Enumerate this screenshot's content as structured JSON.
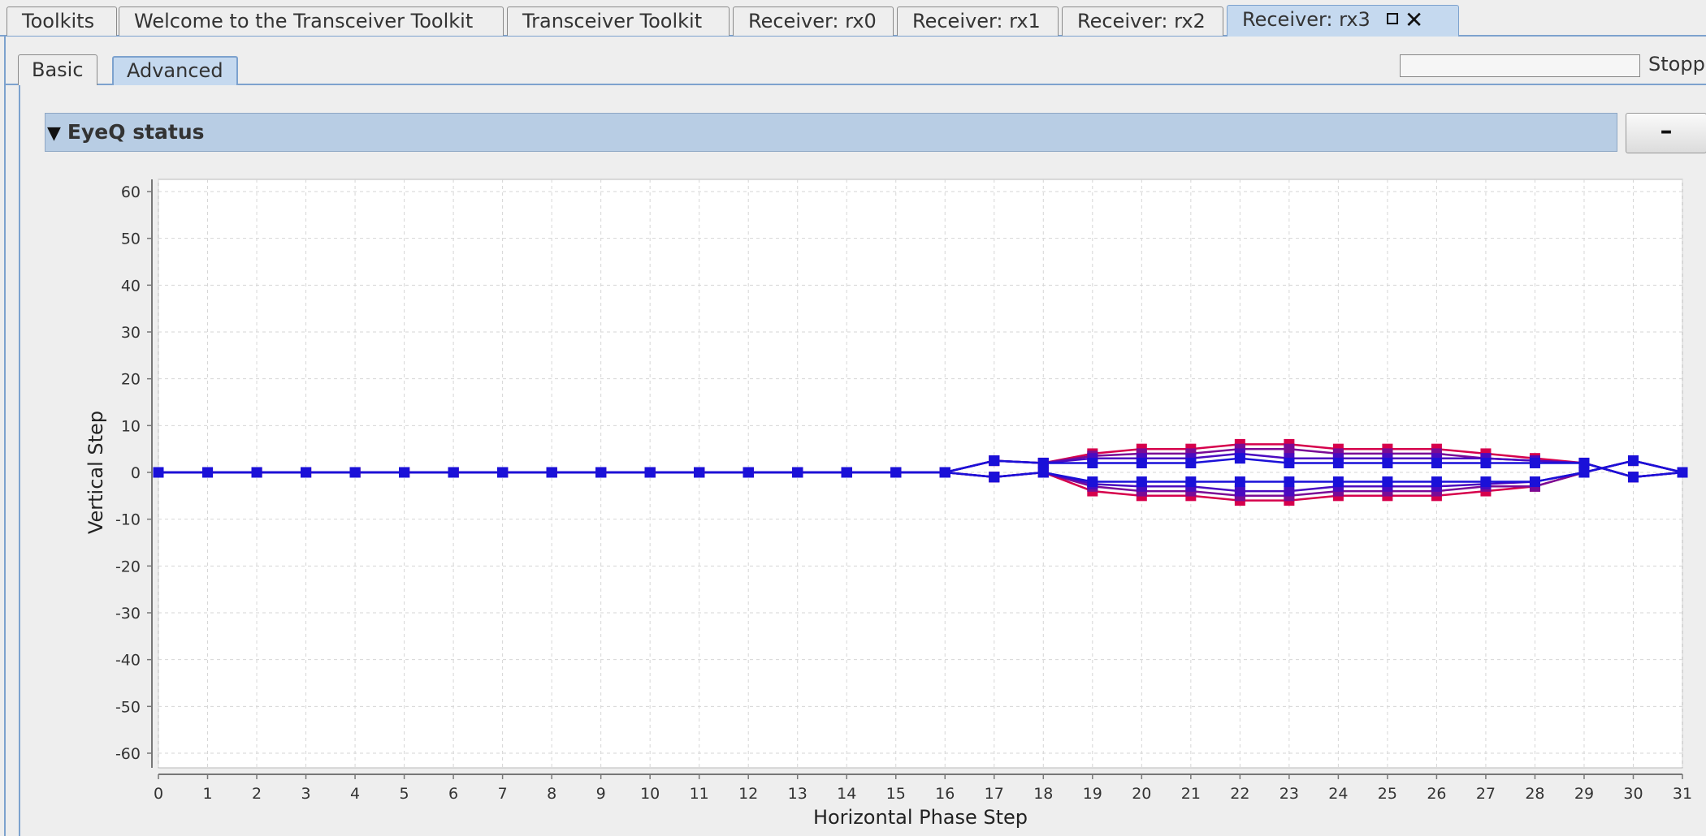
{
  "tabs": [
    {
      "label": "Toolkits",
      "active": false
    },
    {
      "label": "Welcome to the Transceiver Toolkit",
      "active": false
    },
    {
      "label": "Transceiver Toolkit",
      "active": false
    },
    {
      "label": "Receiver: rx0",
      "active": false
    },
    {
      "label": "Receiver: rx1",
      "active": false
    },
    {
      "label": "Receiver: rx2",
      "active": false
    },
    {
      "label": "Receiver: rx3",
      "active": true
    }
  ],
  "subtabs": [
    {
      "label": "Basic",
      "active": false
    },
    {
      "label": "Advanced",
      "active": true
    }
  ],
  "status_text": "Stopped",
  "section": {
    "title": "EyeQ status",
    "collapse_label": "–"
  },
  "colors": {
    "accent": "#7da2ce",
    "header_bg": "#b8cde4",
    "series_red": "#d6004c",
    "series_purple": "#7a0a96",
    "series_blue": "#1a10d8"
  },
  "icons": [
    "maximize-icon",
    "close-icon",
    "triangle-down-icon"
  ],
  "chart_data": {
    "type": "line",
    "xlabel": "Horizontal Phase Step",
    "ylabel": "Vertical Step",
    "xlim": [
      0,
      31
    ],
    "ylim": [
      -60,
      60
    ],
    "xticks": [
      0,
      1,
      2,
      3,
      4,
      5,
      6,
      7,
      8,
      9,
      10,
      11,
      12,
      13,
      14,
      15,
      16,
      17,
      18,
      19,
      20,
      21,
      22,
      23,
      24,
      25,
      26,
      27,
      28,
      29,
      30,
      31
    ],
    "yticks": [
      60,
      50,
      40,
      30,
      20,
      10,
      0,
      -10,
      -20,
      -30,
      -40,
      -50,
      -60
    ],
    "grid": true,
    "x": [
      0,
      1,
      2,
      3,
      4,
      5,
      6,
      7,
      8,
      9,
      10,
      11,
      12,
      13,
      14,
      15,
      16,
      17,
      18,
      19,
      20,
      21,
      22,
      23,
      24,
      25,
      26,
      27,
      28,
      29,
      30,
      31
    ],
    "series": [
      {
        "color": "#d6004c",
        "values": [
          0,
          0,
          0,
          0,
          0,
          0,
          0,
          0,
          0,
          0,
          0,
          0,
          0,
          0,
          0,
          0,
          0,
          2.5,
          2,
          4,
          5,
          5,
          6,
          6,
          5,
          5,
          5,
          4,
          3,
          2,
          -1,
          0
        ]
      },
      {
        "color": "#d6004c",
        "values": [
          0,
          0,
          0,
          0,
          0,
          0,
          0,
          0,
          0,
          0,
          0,
          0,
          0,
          0,
          0,
          0,
          0,
          -1,
          0,
          -4,
          -5,
          -5,
          -6,
          -6,
          -5,
          -5,
          -5,
          -4,
          -3,
          0,
          2.5,
          0
        ]
      },
      {
        "color": "#7a0a96",
        "values": [
          0,
          0,
          0,
          0,
          0,
          0,
          0,
          0,
          0,
          0,
          0,
          0,
          0,
          0,
          0,
          0,
          0,
          2.5,
          2,
          3.5,
          4,
          4,
          5,
          5,
          4,
          4,
          4,
          3,
          2.5,
          2,
          -1,
          0
        ]
      },
      {
        "color": "#7a0a96",
        "values": [
          0,
          0,
          0,
          0,
          0,
          0,
          0,
          0,
          0,
          0,
          0,
          0,
          0,
          0,
          0,
          0,
          0,
          -1,
          0,
          -3,
          -4,
          -4,
          -5,
          -5,
          -4,
          -4,
          -4,
          -3,
          -3,
          0,
          2.5,
          0
        ]
      },
      {
        "color": "#4a0ac0",
        "values": [
          0,
          0,
          0,
          0,
          0,
          0,
          0,
          0,
          0,
          0,
          0,
          0,
          0,
          0,
          0,
          0,
          0,
          2.5,
          2,
          3,
          3,
          3,
          4,
          3,
          3,
          3,
          3,
          3,
          2.5,
          2,
          -1,
          0
        ]
      },
      {
        "color": "#4a0ac0",
        "values": [
          0,
          0,
          0,
          0,
          0,
          0,
          0,
          0,
          0,
          0,
          0,
          0,
          0,
          0,
          0,
          0,
          0,
          -1,
          0,
          -2.5,
          -3,
          -3,
          -4,
          -4,
          -3,
          -3,
          -3,
          -2.5,
          -2,
          0,
          2.5,
          0
        ]
      },
      {
        "color": "#1a10d8",
        "values": [
          0,
          0,
          0,
          0,
          0,
          0,
          0,
          0,
          0,
          0,
          0,
          0,
          0,
          0,
          0,
          0,
          0,
          2.5,
          2,
          2,
          2,
          2,
          3,
          2,
          2,
          2,
          2,
          2,
          2,
          2,
          -1,
          0
        ]
      },
      {
        "color": "#1a10d8",
        "values": [
          0,
          0,
          0,
          0,
          0,
          0,
          0,
          0,
          0,
          0,
          0,
          0,
          0,
          0,
          0,
          0,
          0,
          -1,
          0,
          -2,
          -2,
          -2,
          -2,
          -2,
          -2,
          -2,
          -2,
          -2,
          -2,
          0,
          2.5,
          0
        ]
      }
    ]
  }
}
